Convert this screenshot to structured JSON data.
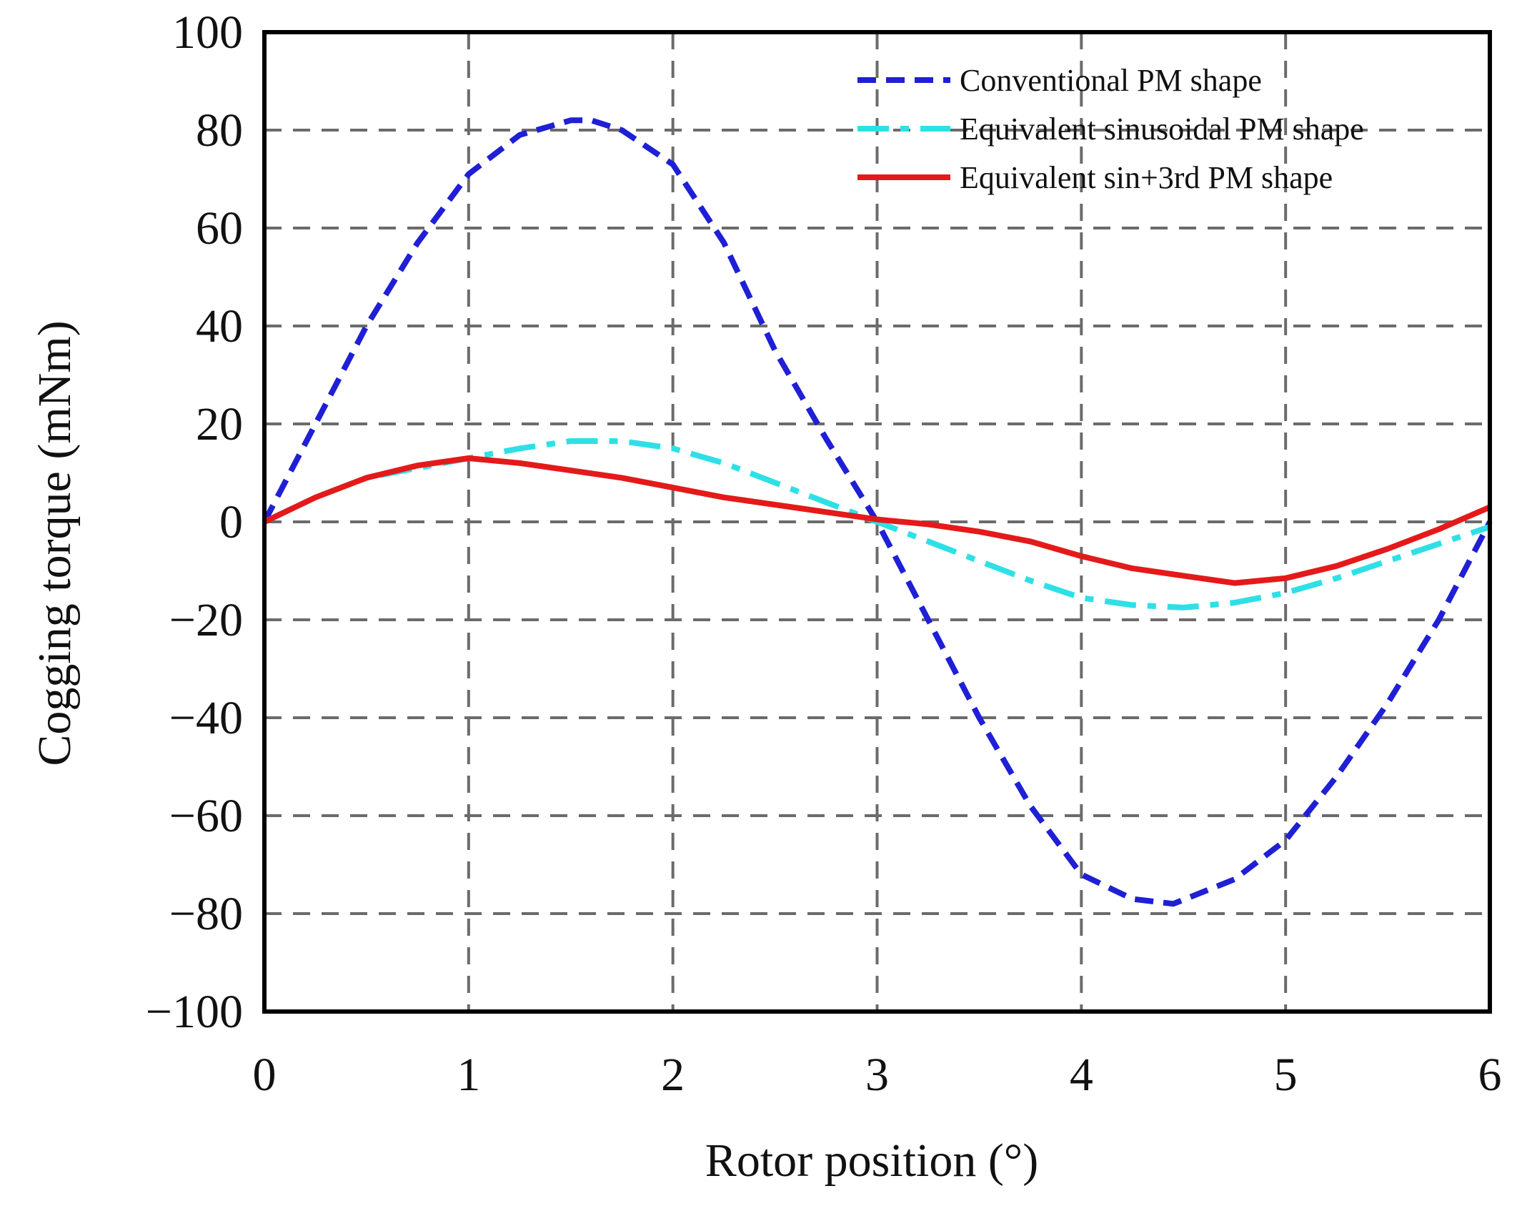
{
  "chart_data": {
    "type": "line",
    "title": "",
    "xlabel": "Rotor position (°)",
    "ylabel": "Cogging torque (mNm)",
    "xlim": [
      0,
      6
    ],
    "ylim": [
      -100,
      100
    ],
    "xticks": [
      0,
      1,
      2,
      3,
      4,
      5,
      6
    ],
    "yticks": [
      100,
      80,
      60,
      40,
      20,
      0,
      -20,
      -40,
      -60,
      -80,
      -100
    ],
    "xtick_labels": [
      "0",
      "1",
      "2",
      "3",
      "4",
      "5",
      "6"
    ],
    "ytick_labels": [
      "100",
      "80",
      "60",
      "40",
      "20",
      "0",
      "−20",
      "−40",
      "−60",
      "−80",
      "−100"
    ],
    "grid": true,
    "legend_position": "top-right",
    "series": [
      {
        "name": "Conventional PM shape",
        "color": "#1f1fd6",
        "style": "dashed",
        "x": [
          0,
          0.25,
          0.5,
          0.75,
          1.0,
          1.25,
          1.5,
          1.6,
          1.75,
          2.0,
          2.25,
          2.5,
          2.75,
          3.0,
          3.25,
          3.5,
          3.75,
          4.0,
          4.25,
          4.45,
          4.75,
          5.0,
          5.25,
          5.5,
          5.75,
          6.0
        ],
        "y": [
          0,
          20,
          40,
          57,
          71,
          79,
          82,
          82,
          80,
          73,
          57,
          35,
          17,
          0,
          -20,
          -40,
          -58,
          -72,
          -77,
          -78,
          -73,
          -65,
          -52,
          -37,
          -20,
          0
        ]
      },
      {
        "name": "Equivalent sinusoidal PM shape",
        "color": "#2ee0e6",
        "style": "dashdot",
        "x": [
          0,
          0.25,
          0.5,
          0.75,
          1.0,
          1.25,
          1.5,
          1.75,
          2.0,
          2.25,
          2.5,
          2.75,
          3.0,
          3.25,
          3.5,
          3.75,
          4.0,
          4.25,
          4.5,
          4.75,
          5.0,
          5.25,
          5.5,
          5.75,
          6.0
        ],
        "y": [
          0,
          5,
          9,
          11,
          13,
          15,
          16.5,
          16.5,
          15,
          12,
          8,
          4,
          0,
          -4,
          -8,
          -12,
          -15.5,
          -17,
          -17.5,
          -16.5,
          -14.5,
          -11.5,
          -8,
          -4.5,
          -1
        ]
      },
      {
        "name": "Equivalent sin+3rd PM shape",
        "color": "#e41a1a",
        "style": "solid",
        "x": [
          0,
          0.25,
          0.5,
          0.75,
          1.0,
          1.25,
          1.5,
          1.75,
          2.0,
          2.25,
          2.5,
          2.75,
          3.0,
          3.25,
          3.5,
          3.75,
          4.0,
          4.25,
          4.5,
          4.75,
          5.0,
          5.25,
          5.5,
          5.75,
          6.0
        ],
        "y": [
          0,
          5,
          9,
          11.5,
          13,
          12,
          10.5,
          9,
          7,
          5,
          3.5,
          2,
          0.5,
          -0.5,
          -2,
          -4,
          -7,
          -9.5,
          -11,
          -12.5,
          -11.5,
          -9,
          -5.5,
          -1.5,
          3
        ]
      }
    ]
  }
}
